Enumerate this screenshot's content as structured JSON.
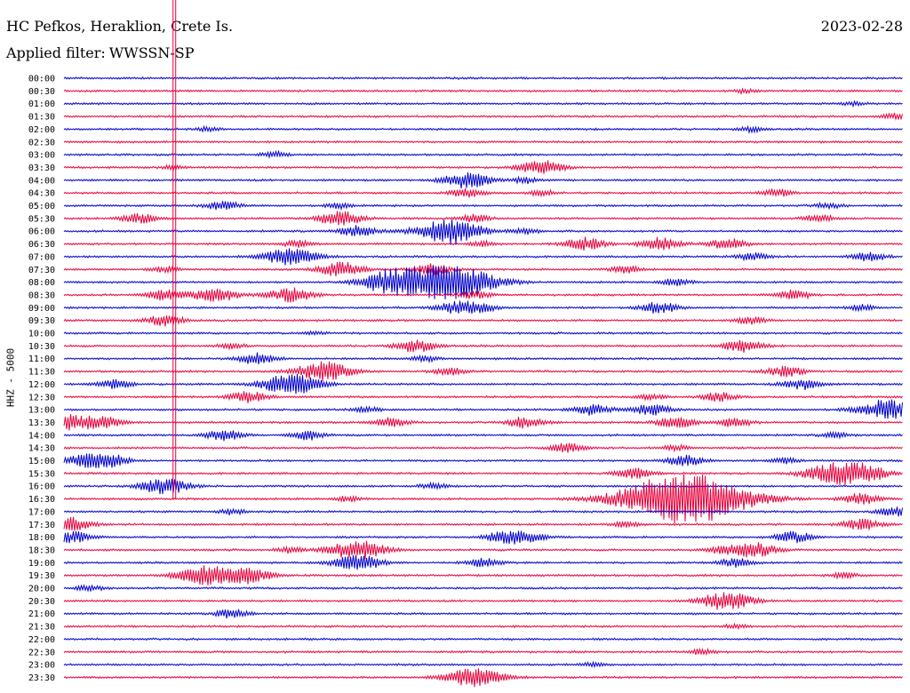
{
  "header": {
    "station": "HC Pefkos, Heraklion, Crete Is.",
    "date": "2023-02-28",
    "filter_label": "Applied filter:",
    "filter_value": "WWSSN-SP"
  },
  "colors": {
    "trace_a": "#0000cc",
    "trace_b": "#e8003c",
    "background": "#ffffff",
    "text": "#000000"
  },
  "chart_data": {
    "type": "line",
    "ylabel": "HHZ - 5000",
    "grid": false,
    "line_colors_alternate": [
      "#0000cc",
      "#e8003c"
    ],
    "rows": [
      {
        "time": "00:00",
        "events": []
      },
      {
        "time": "00:30",
        "events": [
          [
            0.81,
            2
          ]
        ]
      },
      {
        "time": "01:00",
        "events": [
          [
            0.94,
            2
          ]
        ]
      },
      {
        "time": "01:30",
        "events": [
          [
            0.99,
            3
          ]
        ]
      },
      {
        "time": "02:00",
        "events": [
          [
            0.17,
            2
          ],
          [
            0.82,
            3
          ]
        ]
      },
      {
        "time": "02:30",
        "events": []
      },
      {
        "time": "03:00",
        "events": [
          [
            0.25,
            3
          ]
        ]
      },
      {
        "time": "03:30",
        "events": [
          [
            0.57,
            8
          ],
          [
            0.13,
            2
          ]
        ]
      },
      {
        "time": "04:00",
        "events": [
          [
            0.48,
            9
          ],
          [
            0.55,
            3
          ]
        ]
      },
      {
        "time": "04:30",
        "events": [
          [
            0.48,
            5
          ],
          [
            0.85,
            4
          ],
          [
            0.57,
            3
          ]
        ]
      },
      {
        "time": "05:00",
        "events": [
          [
            0.19,
            5
          ],
          [
            0.33,
            3
          ],
          [
            0.91,
            3
          ]
        ]
      },
      {
        "time": "05:30",
        "events": [
          [
            0.09,
            5
          ],
          [
            0.33,
            8
          ],
          [
            0.49,
            4
          ],
          [
            0.9,
            4
          ]
        ]
      },
      {
        "time": "06:00",
        "events": [
          [
            0.35,
            6
          ],
          [
            0.46,
            14
          ],
          [
            0.55,
            3
          ]
        ]
      },
      {
        "time": "06:30",
        "events": [
          [
            0.28,
            4
          ],
          [
            0.62,
            7
          ],
          [
            0.71,
            7
          ],
          [
            0.79,
            6
          ],
          [
            0.5,
            3
          ]
        ]
      },
      {
        "time": "07:00",
        "events": [
          [
            0.27,
            10
          ],
          [
            0.82,
            4
          ],
          [
            0.96,
            5
          ]
        ]
      },
      {
        "time": "07:30",
        "events": [
          [
            0.33,
            8
          ],
          [
            0.44,
            6
          ],
          [
            0.67,
            4
          ],
          [
            0.12,
            3
          ]
        ]
      },
      {
        "time": "08:00",
        "events": [
          [
            0.39,
            12
          ],
          [
            0.73,
            4
          ],
          [
            0.46,
            20
          ]
        ]
      },
      {
        "time": "08:30",
        "events": [
          [
            0.12,
            6
          ],
          [
            0.18,
            8
          ],
          [
            0.27,
            8
          ],
          [
            0.49,
            4
          ],
          [
            0.87,
            5
          ]
        ]
      },
      {
        "time": "09:00",
        "events": [
          [
            0.47,
            7
          ],
          [
            0.5,
            4
          ],
          [
            0.71,
            6
          ],
          [
            0.95,
            3
          ]
        ]
      },
      {
        "time": "09:30",
        "events": [
          [
            0.12,
            6
          ],
          [
            0.82,
            4
          ]
        ]
      },
      {
        "time": "10:00",
        "events": [
          [
            0.3,
            2
          ]
        ]
      },
      {
        "time": "10:30",
        "events": [
          [
            0.42,
            7
          ],
          [
            0.81,
            7
          ],
          [
            0.2,
            3
          ]
        ]
      },
      {
        "time": "11:00",
        "events": [
          [
            0.23,
            6
          ],
          [
            0.43,
            3
          ]
        ]
      },
      {
        "time": "11:30",
        "events": [
          [
            0.31,
            11
          ],
          [
            0.46,
            4
          ],
          [
            0.86,
            6
          ]
        ]
      },
      {
        "time": "12:00",
        "events": [
          [
            0.06,
            5
          ],
          [
            0.27,
            12
          ],
          [
            0.88,
            6
          ]
        ]
      },
      {
        "time": "12:30",
        "events": [
          [
            0.22,
            6
          ],
          [
            0.78,
            5
          ],
          [
            0.7,
            3
          ]
        ]
      },
      {
        "time": "13:00",
        "events": [
          [
            0.63,
            6
          ],
          [
            0.7,
            6
          ],
          [
            0.98,
            11
          ],
          [
            0.36,
            3
          ]
        ]
      },
      {
        "time": "13:30",
        "events": [
          [
            0.01,
            8
          ],
          [
            0.05,
            6
          ],
          [
            0.39,
            5
          ],
          [
            0.55,
            6
          ],
          [
            0.73,
            6
          ],
          [
            0.8,
            5
          ]
        ]
      },
      {
        "time": "14:00",
        "events": [
          [
            0.19,
            6
          ],
          [
            0.29,
            5
          ],
          [
            0.92,
            3
          ]
        ]
      },
      {
        "time": "14:30",
        "events": [
          [
            0.6,
            5
          ],
          [
            0.73,
            3
          ]
        ]
      },
      {
        "time": "15:00",
        "events": [
          [
            0.03,
            8
          ],
          [
            0.06,
            5
          ],
          [
            0.74,
            6
          ],
          [
            0.86,
            3
          ]
        ]
      },
      {
        "time": "15:30",
        "events": [
          [
            0.68,
            6
          ],
          [
            0.92,
            12
          ],
          [
            0.96,
            7
          ]
        ]
      },
      {
        "time": "16:00",
        "events": [
          [
            0.12,
            9
          ],
          [
            0.44,
            3
          ]
        ]
      },
      {
        "time": "16:30",
        "events": [
          [
            0.74,
            30
          ],
          [
            0.95,
            6
          ],
          [
            0.34,
            3
          ]
        ]
      },
      {
        "time": "17:00",
        "events": [
          [
            0.2,
            3
          ],
          [
            0.99,
            5
          ]
        ]
      },
      {
        "time": "17:30",
        "events": [
          [
            0.0,
            9
          ],
          [
            0.95,
            6
          ],
          [
            0.67,
            3
          ]
        ]
      },
      {
        "time": "18:00",
        "events": [
          [
            0.01,
            6
          ],
          [
            0.52,
            5
          ],
          [
            0.55,
            7
          ],
          [
            0.87,
            6
          ]
        ]
      },
      {
        "time": "18:30",
        "events": [
          [
            0.35,
            11
          ],
          [
            0.27,
            3
          ],
          [
            0.82,
            9
          ],
          [
            0.78,
            3
          ]
        ]
      },
      {
        "time": "19:00",
        "events": [
          [
            0.35,
            9
          ],
          [
            0.5,
            5
          ],
          [
            0.8,
            5
          ]
        ]
      },
      {
        "time": "19:30",
        "events": [
          [
            0.17,
            11
          ],
          [
            0.22,
            8
          ],
          [
            0.93,
            3
          ]
        ]
      },
      {
        "time": "20:00",
        "events": [
          [
            0.03,
            3
          ]
        ]
      },
      {
        "time": "20:30",
        "events": [
          [
            0.79,
            10
          ]
        ]
      },
      {
        "time": "21:00",
        "events": [
          [
            0.2,
            5
          ]
        ]
      },
      {
        "time": "21:30",
        "events": [
          [
            0.8,
            2
          ]
        ]
      },
      {
        "time": "22:00",
        "events": []
      },
      {
        "time": "22:30",
        "events": [
          [
            0.76,
            3
          ]
        ]
      },
      {
        "time": "23:00",
        "events": [
          [
            0.63,
            2
          ]
        ]
      },
      {
        "time": "23:30",
        "events": [
          [
            0.49,
            11
          ]
        ]
      }
    ],
    "marker_lines": [
      {
        "from_row": "00:00",
        "to_row": "16:30",
        "x_frac": 0.13,
        "color": "#e8003c"
      }
    ]
  }
}
